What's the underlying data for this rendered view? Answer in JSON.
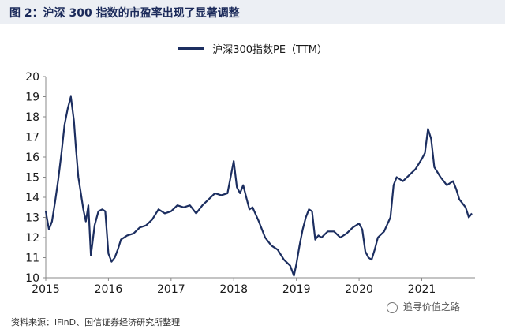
{
  "header": {
    "title": "图 2：沪深 300 指数的市盈率出现了显著调整"
  },
  "source": "资料来源：iFinD、国信证券经济研究所整理",
  "watermark": "追寻价值之路",
  "chart_data": {
    "type": "line",
    "title": "",
    "legend": [
      "沪深300指数PE（TTM）"
    ],
    "ylim": [
      10,
      20
    ],
    "yticks": [
      10,
      11,
      12,
      13,
      14,
      15,
      16,
      17,
      18,
      19,
      20
    ],
    "xlim": [
      2015,
      2021.85
    ],
    "xticks": [
      2015,
      2016,
      2017,
      2018,
      2019,
      2020,
      2021
    ],
    "color": "#1c2e60",
    "series": [
      {
        "x": [
          2015.0,
          2015.05,
          2015.1,
          2015.15,
          2015.2,
          2015.25,
          2015.3,
          2015.35,
          2015.4,
          2015.45,
          2015.48,
          2015.52,
          2015.56,
          2015.6,
          2015.64,
          2015.68,
          2015.72,
          2015.78,
          2015.84,
          2015.9,
          2015.95,
          2016.0,
          2016.05,
          2016.1,
          2016.15,
          2016.2,
          2016.3,
          2016.4,
          2016.5,
          2016.6,
          2016.7,
          2016.8,
          2016.9,
          2017.0,
          2017.1,
          2017.2,
          2017.3,
          2017.4,
          2017.5,
          2017.6,
          2017.7,
          2017.8,
          2017.9,
          2018.0,
          2018.05,
          2018.1,
          2018.15,
          2018.2,
          2018.25,
          2018.3,
          2018.4,
          2018.5,
          2018.6,
          2018.7,
          2018.8,
          2018.9,
          2018.96,
          2019.0,
          2019.05,
          2019.1,
          2019.15,
          2019.2,
          2019.25,
          2019.3,
          2019.35,
          2019.4,
          2019.5,
          2019.6,
          2019.7,
          2019.8,
          2019.9,
          2020.0,
          2020.05,
          2020.1,
          2020.15,
          2020.2,
          2020.25,
          2020.3,
          2020.4,
          2020.5,
          2020.55,
          2020.6,
          2020.7,
          2020.8,
          2020.9,
          2021.0,
          2021.05,
          2021.1,
          2021.15,
          2021.2,
          2021.3,
          2021.4,
          2021.5,
          2021.55,
          2021.6,
          2021.7,
          2021.75,
          2021.8
        ],
        "y": [
          13.3,
          12.4,
          12.8,
          13.8,
          14.9,
          16.2,
          17.6,
          18.4,
          19.0,
          17.8,
          16.5,
          15.0,
          14.2,
          13.4,
          12.8,
          13.6,
          11.1,
          12.6,
          13.3,
          13.4,
          13.3,
          11.2,
          10.8,
          11.0,
          11.4,
          11.9,
          12.1,
          12.2,
          12.5,
          12.6,
          12.9,
          13.4,
          13.2,
          13.3,
          13.6,
          13.5,
          13.6,
          13.2,
          13.6,
          13.9,
          14.2,
          14.1,
          14.2,
          15.8,
          14.5,
          14.2,
          14.6,
          14.0,
          13.4,
          13.5,
          12.8,
          12.0,
          11.6,
          11.4,
          10.9,
          10.6,
          10.1,
          10.7,
          11.6,
          12.4,
          13.0,
          13.4,
          13.3,
          11.9,
          12.1,
          12.0,
          12.3,
          12.3,
          12.0,
          12.2,
          12.5,
          12.7,
          12.4,
          11.3,
          11.0,
          10.9,
          11.4,
          12.0,
          12.3,
          13.0,
          14.6,
          15.0,
          14.8,
          15.1,
          15.4,
          15.9,
          16.2,
          17.4,
          16.9,
          15.5,
          15.0,
          14.6,
          14.8,
          14.4,
          13.9,
          13.5,
          13.0,
          13.2
        ]
      }
    ]
  }
}
